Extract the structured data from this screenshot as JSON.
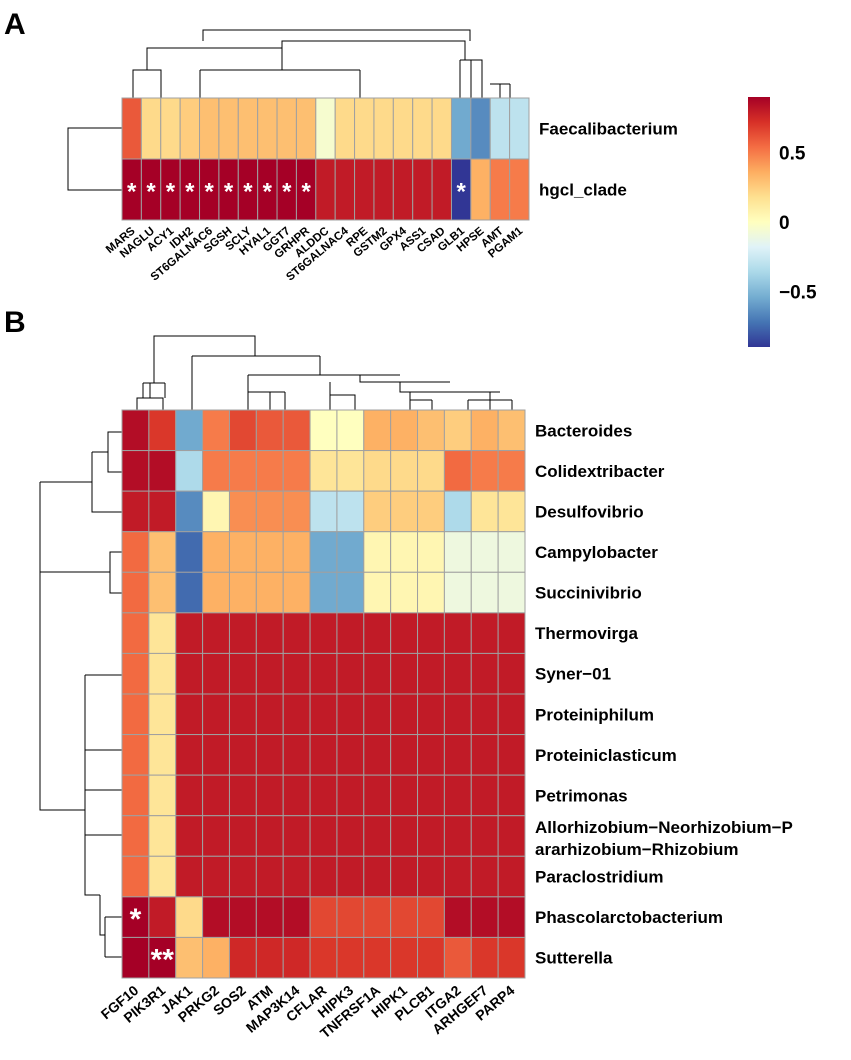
{
  "chart_data": [
    {
      "panel": "A",
      "type": "heatmap",
      "rows": [
        "Faecalibacterium",
        "hgcl_clade"
      ],
      "columns": [
        "MARS",
        "NAGLU",
        "ACY1",
        "IDH2",
        "ST6GALNAC6",
        "SGSH",
        "SCLY",
        "HYAL1",
        "GGT7",
        "GRHPR",
        "ALDDC",
        "ST6GALNAC4",
        "RPE",
        "GSTM2",
        "GPX4",
        "ASS1",
        "CSAD",
        "GLB1",
        "HPSE",
        "AMT",
        "PGAM1"
      ],
      "values": [
        [
          0.6,
          0.2,
          0.2,
          0.25,
          0.3,
          0.3,
          0.3,
          0.3,
          0.3,
          0.3,
          -0.05,
          0.2,
          0.2,
          0.2,
          0.2,
          0.2,
          0.2,
          -0.55,
          -0.65,
          -0.3,
          -0.3
        ],
        [
          0.9,
          0.9,
          0.9,
          0.9,
          0.9,
          0.9,
          0.9,
          0.9,
          0.9,
          0.9,
          0.8,
          0.8,
          0.8,
          0.8,
          0.8,
          0.8,
          0.8,
          -0.95,
          0.35,
          0.5,
          0.5
        ]
      ],
      "significance": [
        [
          "",
          "",
          "",
          "",
          "",
          "",
          "",
          "",
          "",
          "",
          "",
          "",
          "",
          "",
          "",
          "",
          "",
          "",
          "",
          "",
          ""
        ],
        [
          "*",
          "*",
          "*",
          "*",
          "*",
          "*",
          "*",
          "*",
          "*",
          "*",
          "",
          "",
          "",
          "",
          "",
          "",
          "",
          "*",
          "",
          "",
          ""
        ]
      ]
    },
    {
      "panel": "B",
      "type": "heatmap",
      "rows": [
        "Bacteroides",
        "Colidextribacter",
        "Desulfovibrio",
        "Campylobacter",
        "Succinivibrio",
        "Thermovirga",
        "Syner−01",
        "Proteiniphilum",
        "Proteiniclasticum",
        "Petrimonas",
        "Allorhizobium−Neorhizobium−Pararhizobium−Rhizobium",
        "Paraclostridium",
        "Phascolarctobacterium",
        "Sutterella"
      ],
      "row_label_lines": {
        "10": [
          "Allorhizobium−Neorhizobium−P",
          "ararhizobium−Rhizobium"
        ]
      },
      "columns": [
        "FGF10",
        "PIK3R1",
        "JAK1",
        "PRKG2",
        "SOS2",
        "ATM",
        "MAP3K14",
        "CFLAR",
        "HIPK3",
        "TNFRSF1A",
        "HIPK1",
        "PLCB1",
        "ITGA2",
        "ARHGEF7",
        "PARP4"
      ],
      "values": [
        [
          0.85,
          0.7,
          -0.55,
          0.5,
          0.65,
          0.6,
          0.6,
          0.0,
          0.0,
          0.35,
          0.35,
          0.3,
          0.25,
          0.35,
          0.3
        ],
        [
          0.85,
          0.85,
          -0.35,
          0.5,
          0.5,
          0.5,
          0.5,
          0.15,
          0.15,
          0.2,
          0.2,
          0.2,
          0.55,
          0.5,
          0.5
        ],
        [
          0.8,
          0.8,
          -0.65,
          0.05,
          0.45,
          0.45,
          0.45,
          -0.3,
          -0.3,
          0.25,
          0.25,
          0.25,
          -0.35,
          0.15,
          0.15
        ],
        [
          0.55,
          0.3,
          -0.75,
          0.35,
          0.35,
          0.35,
          0.35,
          -0.55,
          -0.55,
          0.05,
          0.05,
          0.05,
          -0.1,
          -0.1,
          -0.1
        ],
        [
          0.55,
          0.3,
          -0.75,
          0.35,
          0.35,
          0.35,
          0.35,
          -0.55,
          -0.55,
          0.05,
          0.05,
          0.05,
          -0.1,
          -0.1,
          -0.1
        ],
        [
          0.55,
          0.15,
          0.8,
          0.8,
          0.8,
          0.8,
          0.8,
          0.8,
          0.8,
          0.8,
          0.8,
          0.8,
          0.8,
          0.8,
          0.8
        ],
        [
          0.55,
          0.15,
          0.8,
          0.8,
          0.8,
          0.8,
          0.8,
          0.8,
          0.8,
          0.8,
          0.8,
          0.8,
          0.8,
          0.8,
          0.8
        ],
        [
          0.55,
          0.15,
          0.8,
          0.8,
          0.8,
          0.8,
          0.8,
          0.8,
          0.8,
          0.8,
          0.8,
          0.8,
          0.8,
          0.8,
          0.8
        ],
        [
          0.55,
          0.15,
          0.8,
          0.8,
          0.8,
          0.8,
          0.8,
          0.8,
          0.8,
          0.8,
          0.8,
          0.8,
          0.8,
          0.8,
          0.8
        ],
        [
          0.55,
          0.15,
          0.8,
          0.8,
          0.8,
          0.8,
          0.8,
          0.8,
          0.8,
          0.8,
          0.8,
          0.8,
          0.8,
          0.8,
          0.8
        ],
        [
          0.55,
          0.15,
          0.8,
          0.8,
          0.8,
          0.8,
          0.8,
          0.8,
          0.8,
          0.8,
          0.8,
          0.8,
          0.8,
          0.8,
          0.8
        ],
        [
          0.55,
          0.15,
          0.8,
          0.8,
          0.8,
          0.8,
          0.8,
          0.8,
          0.8,
          0.8,
          0.8,
          0.8,
          0.8,
          0.8,
          0.8
        ],
        [
          0.9,
          0.8,
          0.2,
          0.85,
          0.85,
          0.85,
          0.85,
          0.65,
          0.65,
          0.65,
          0.65,
          0.65,
          0.85,
          0.85,
          0.85
        ],
        [
          0.9,
          0.9,
          0.3,
          0.35,
          0.75,
          0.75,
          0.75,
          0.7,
          0.7,
          0.7,
          0.7,
          0.7,
          0.6,
          0.7,
          0.7
        ]
      ],
      "significance": [
        [
          "",
          "",
          "",
          "",
          "",
          "",
          "",
          "",
          "",
          "",
          "",
          "",
          "",
          "",
          ""
        ],
        [
          "",
          "",
          "",
          "",
          "",
          "",
          "",
          "",
          "",
          "",
          "",
          "",
          "",
          "",
          ""
        ],
        [
          "",
          "",
          "",
          "",
          "",
          "",
          "",
          "",
          "",
          "",
          "",
          "",
          "",
          "",
          ""
        ],
        [
          "",
          "",
          "",
          "",
          "",
          "",
          "",
          "",
          "",
          "",
          "",
          "",
          "",
          "",
          ""
        ],
        [
          "",
          "",
          "",
          "",
          "",
          "",
          "",
          "",
          "",
          "",
          "",
          "",
          "",
          "",
          ""
        ],
        [
          "",
          "",
          "",
          "",
          "",
          "",
          "",
          "",
          "",
          "",
          "",
          "",
          "",
          "",
          ""
        ],
        [
          "",
          "",
          "",
          "",
          "",
          "",
          "",
          "",
          "",
          "",
          "",
          "",
          "",
          "",
          ""
        ],
        [
          "",
          "",
          "",
          "",
          "",
          "",
          "",
          "",
          "",
          "",
          "",
          "",
          "",
          "",
          ""
        ],
        [
          "",
          "",
          "",
          "",
          "",
          "",
          "",
          "",
          "",
          "",
          "",
          "",
          "",
          "",
          ""
        ],
        [
          "",
          "",
          "",
          "",
          "",
          "",
          "",
          "",
          "",
          "",
          "",
          "",
          "",
          "",
          ""
        ],
        [
          "",
          "",
          "",
          "",
          "",
          "",
          "",
          "",
          "",
          "",
          "",
          "",
          "",
          "",
          ""
        ],
        [
          "",
          "",
          "",
          "",
          "",
          "",
          "",
          "",
          "",
          "",
          "",
          "",
          "",
          "",
          ""
        ],
        [
          "*",
          "",
          "",
          "",
          "",
          "",
          "",
          "",
          "",
          "",
          "",
          "",
          "",
          "",
          ""
        ],
        [
          "",
          "**",
          "",
          "",
          "",
          "",
          "",
          "",
          "",
          "",
          "",
          "",
          "",
          "",
          ""
        ]
      ]
    }
  ],
  "colorbar": {
    "range": [
      -0.9,
      0.9
    ],
    "ticks": [
      0.5,
      0,
      -0.5
    ],
    "tick_labels": [
      "0.5",
      "0",
      "−0.5"
    ],
    "stops": [
      "#313695",
      "#4575b4",
      "#74add1",
      "#abd9e9",
      "#e0f3f8",
      "#ffffbf",
      "#fee090",
      "#fdae61",
      "#f46d43",
      "#d73027",
      "#a50026"
    ]
  },
  "grid_color": "#a0a0a0"
}
